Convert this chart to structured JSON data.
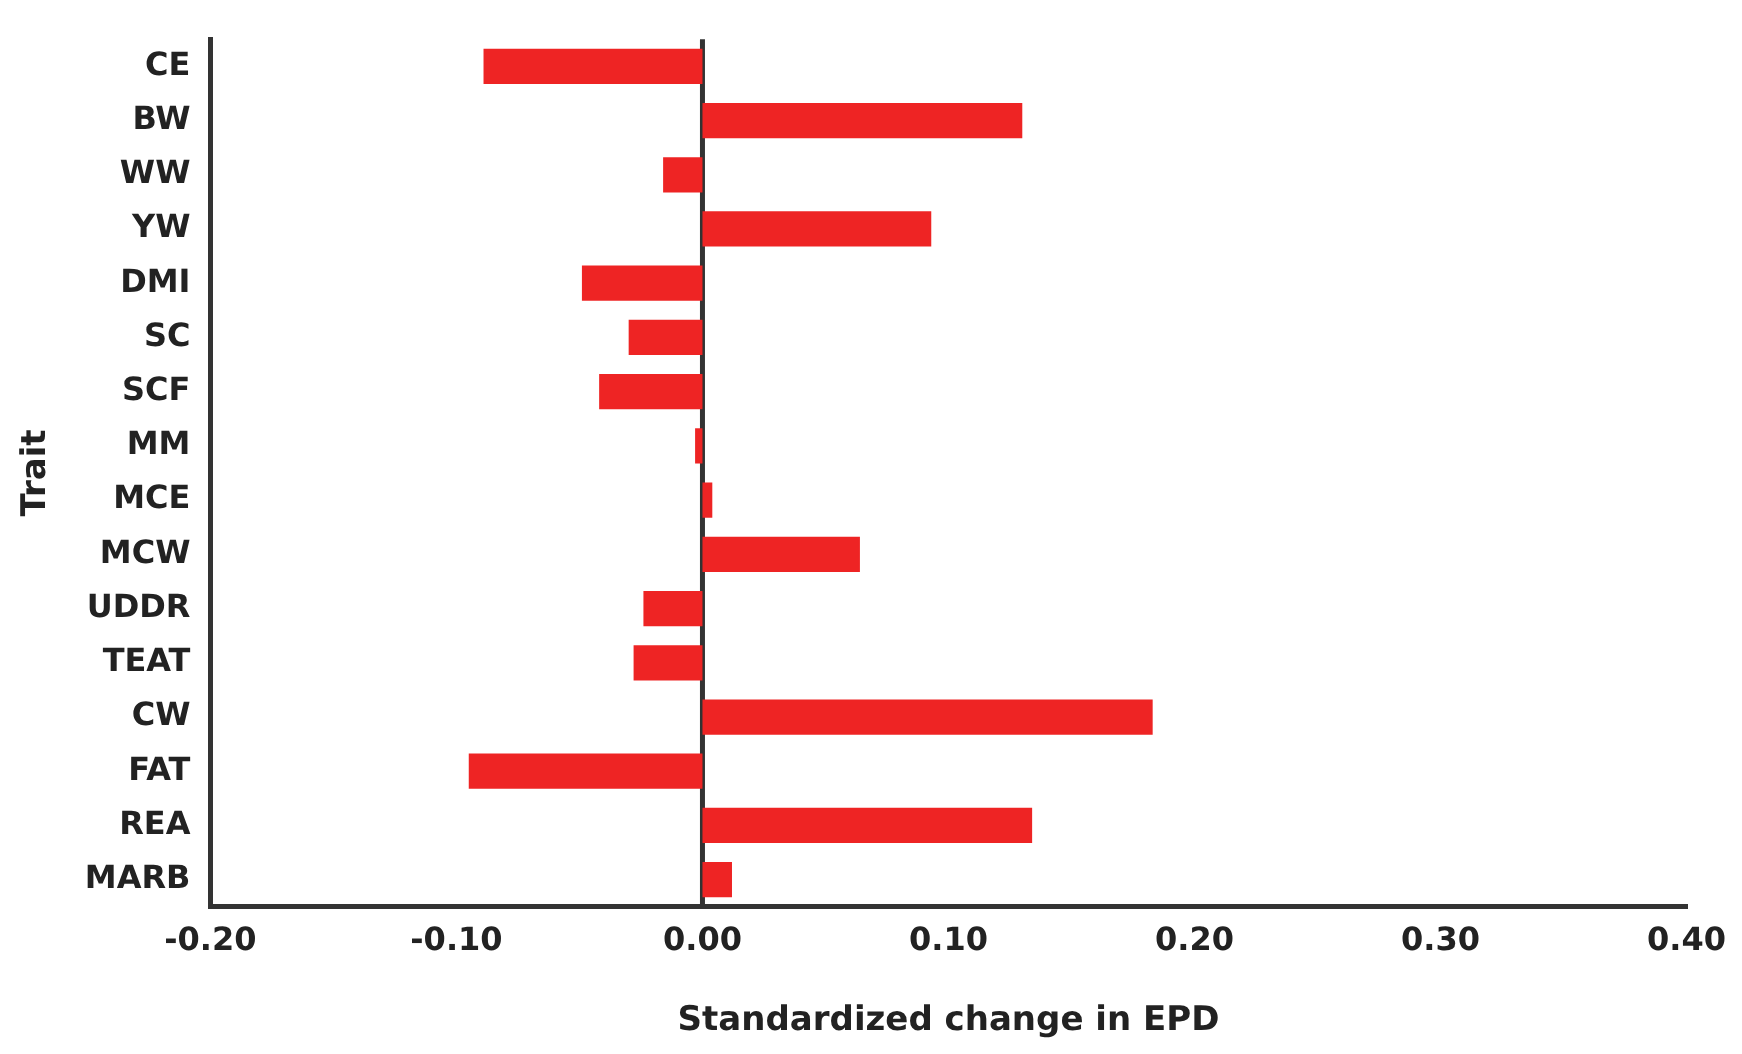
{
  "chart_data": {
    "type": "bar",
    "orientation": "horizontal",
    "xlabel": "Standardized change in EPD",
    "ylabel": "Trait",
    "categories": [
      "CE",
      "BW",
      "WW",
      "YW",
      "DMI",
      "SC",
      "SCF",
      "MM",
      "MCE",
      "MCW",
      "UDDR",
      "TEAT",
      "CW",
      "FAT",
      "REA",
      "MARB"
    ],
    "values": [
      -0.089,
      0.13,
      -0.016,
      0.093,
      -0.049,
      -0.03,
      -0.042,
      -0.003,
      0.004,
      0.064,
      -0.024,
      -0.028,
      0.183,
      -0.095,
      0.134,
      0.012
    ],
    "color": "#ee2424",
    "xlim": [
      -0.2,
      0.4
    ],
    "xticks": [
      {
        "value": -0.2,
        "label": "-0.20"
      },
      {
        "value": -0.1,
        "label": "-0.10"
      },
      {
        "value": 0,
        "label": "0.00"
      },
      {
        "value": 0.1,
        "label": "0.10"
      },
      {
        "value": 0.2,
        "label": "0.20"
      },
      {
        "value": 0.3,
        "label": "0.30"
      },
      {
        "value": 0.4,
        "label": "0.40"
      }
    ],
    "ref_lines": [
      {
        "axis": "x",
        "value": 0,
        "color": "#333333"
      }
    ],
    "grid": false,
    "legend": false
  }
}
